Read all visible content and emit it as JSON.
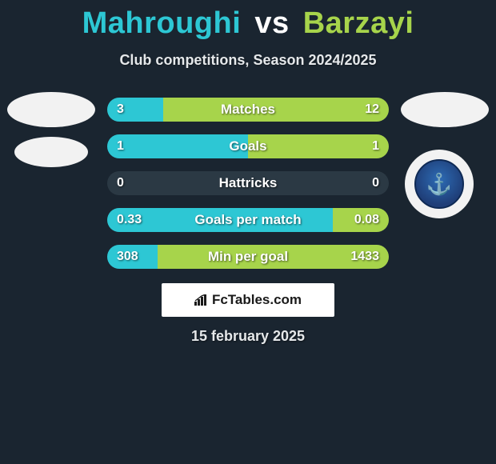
{
  "title": {
    "player1": "Mahroughi",
    "vs": "vs",
    "player2": "Barzayi",
    "color_player1": "#2dc7d4",
    "color_player2": "#a7d44b"
  },
  "subtitle": "Club competitions, Season 2024/2025",
  "colors": {
    "background": "#1a2530",
    "bar_left": "#2dc7d4",
    "bar_right": "#a7d44b",
    "bar_empty": "#2b3944",
    "text": "#ffffff"
  },
  "bars": [
    {
      "label": "Matches",
      "left_val": "3",
      "right_val": "12",
      "left_pct": 20,
      "right_pct": 80
    },
    {
      "label": "Goals",
      "left_val": "1",
      "right_val": "1",
      "left_pct": 50,
      "right_pct": 50
    },
    {
      "label": "Hattricks",
      "left_val": "0",
      "right_val": "0",
      "left_pct": 0,
      "right_pct": 0
    },
    {
      "label": "Goals per match",
      "left_val": "0.33",
      "right_val": "0.08",
      "left_pct": 80,
      "right_pct": 20
    },
    {
      "label": "Min per goal",
      "left_val": "308",
      "right_val": "1433",
      "left_pct": 18,
      "right_pct": 82
    }
  ],
  "branding": "FcTables.com",
  "date": "15 february 2025"
}
